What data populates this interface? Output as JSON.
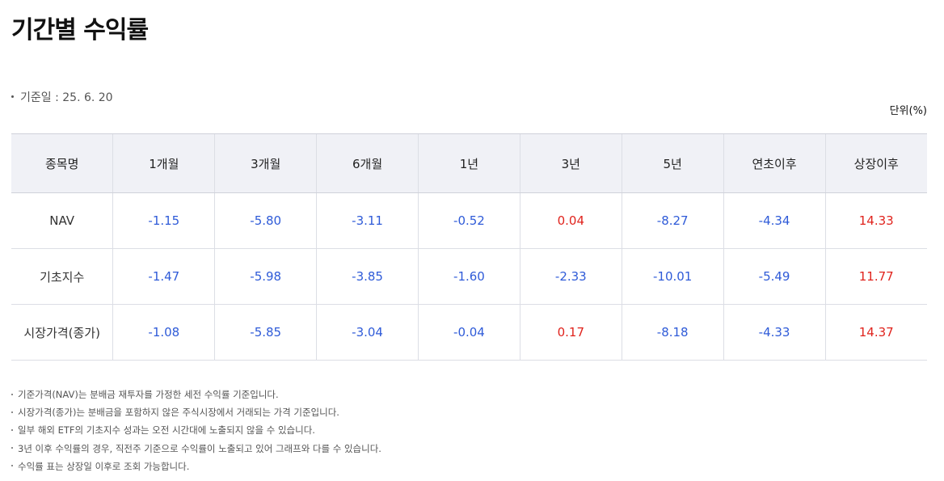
{
  "page": {
    "title": "기간별 수익률",
    "base_date": "기준일 : 25. 6. 20",
    "unit": "단위(%)"
  },
  "table": {
    "headers": [
      "종목명",
      "1개월",
      "3개월",
      "6개월",
      "1년",
      "3년",
      "5년",
      "연초이후",
      "상장이후"
    ],
    "rows": [
      {
        "label": "NAV",
        "cells": [
          {
            "value": "-1.15",
            "tone": "neg"
          },
          {
            "value": "-5.80",
            "tone": "neg"
          },
          {
            "value": "-3.11",
            "tone": "neg"
          },
          {
            "value": "-0.52",
            "tone": "neg"
          },
          {
            "value": "0.04",
            "tone": "pos"
          },
          {
            "value": "-8.27",
            "tone": "neg"
          },
          {
            "value": "-4.34",
            "tone": "neg"
          },
          {
            "value": "14.33",
            "tone": "pos"
          }
        ]
      },
      {
        "label": "기초지수",
        "cells": [
          {
            "value": "-1.47",
            "tone": "neg"
          },
          {
            "value": "-5.98",
            "tone": "neg"
          },
          {
            "value": "-3.85",
            "tone": "neg"
          },
          {
            "value": "-1.60",
            "tone": "neg"
          },
          {
            "value": "-2.33",
            "tone": "neg"
          },
          {
            "value": "-10.01",
            "tone": "neg"
          },
          {
            "value": "-5.49",
            "tone": "neg"
          },
          {
            "value": "11.77",
            "tone": "pos"
          }
        ]
      },
      {
        "label": "시장가격(종가)",
        "cells": [
          {
            "value": "-1.08",
            "tone": "neg"
          },
          {
            "value": "-5.85",
            "tone": "neg"
          },
          {
            "value": "-3.04",
            "tone": "neg"
          },
          {
            "value": "-0.04",
            "tone": "neg"
          },
          {
            "value": "0.17",
            "tone": "pos"
          },
          {
            "value": "-8.18",
            "tone": "neg"
          },
          {
            "value": "-4.33",
            "tone": "neg"
          },
          {
            "value": "14.37",
            "tone": "pos"
          }
        ]
      }
    ]
  },
  "colors": {
    "negative": "#2f5bd8",
    "positive": "#e0231d",
    "header_bg": "#f0f1f6"
  },
  "notes": [
    "기준가격(NAV)는 분배금 재투자를 가정한 세전 수익률 기준입니다.",
    "시장가격(종가)는 분배금을 포함하지 않은 주식시장에서 거래되는 가격 기준입니다.",
    "일부 해외 ETF의 기초지수 성과는 오전 시간대에 노출되지 않을 수 있습니다.",
    "3년 이후 수익률의 경우, 직전주 기준으로 수익률이 노출되고 있어 그래프와 다를 수 있습니다.",
    "수익률 표는 상장일 이후로 조회 가능합니다."
  ]
}
